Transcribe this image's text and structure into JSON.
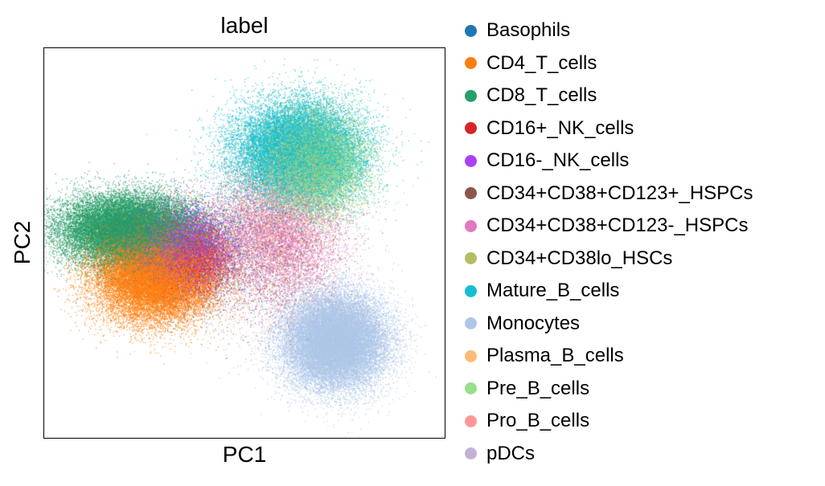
{
  "chart_data": {
    "type": "scatter",
    "title": "label",
    "xlabel": "PC1",
    "ylabel": "PC2",
    "xlim": [
      -1,
      1
    ],
    "ylim": [
      -1,
      1
    ],
    "grid": false,
    "ticks": "hidden",
    "legend_placement": "right outside",
    "series": [
      {
        "name": "Basophils",
        "color": "#1f77b4"
      },
      {
        "name": "CD4_T_cells",
        "color": "#ff7f0e"
      },
      {
        "name": "CD8_T_cells",
        "color": "#279e68"
      },
      {
        "name": "CD16+_NK_cells",
        "color": "#d62728"
      },
      {
        "name": "CD16-_NK_cells",
        "color": "#aa40fc"
      },
      {
        "name": "CD34+CD38+CD123+_HSPCs",
        "color": "#8c564b"
      },
      {
        "name": "CD34+CD38+CD123-_HSPCs",
        "color": "#e377c2"
      },
      {
        "name": "CD34+CD38lo_HSCs",
        "color": "#b5bd61"
      },
      {
        "name": "Mature_B_cells",
        "color": "#17becf"
      },
      {
        "name": "Monocytes",
        "color": "#aec7e8"
      },
      {
        "name": "Plasma_B_cells",
        "color": "#ffbb78"
      },
      {
        "name": "Pre_B_cells",
        "color": "#98df8a"
      },
      {
        "name": "Pro_B_cells",
        "color": "#ff9896"
      },
      {
        "name": "pDCs",
        "color": "#c5b0d5"
      }
    ],
    "clusters": [
      {
        "series": "CD8_T_cells",
        "center": [
          -0.58,
          0.07
        ],
        "spread": [
          0.17,
          0.09
        ],
        "weight": 7
      },
      {
        "series": "CD4_T_cells",
        "center": [
          -0.45,
          -0.16
        ],
        "spread": [
          0.15,
          0.12
        ],
        "weight": 7
      },
      {
        "series": "CD16-_NK_cells",
        "center": [
          -0.32,
          -0.02
        ],
        "spread": [
          0.12,
          0.1
        ],
        "weight": 2
      },
      {
        "series": "CD16+_NK_cells",
        "center": [
          -0.25,
          -0.08
        ],
        "spread": [
          0.1,
          0.1
        ],
        "weight": 1
      },
      {
        "series": "Basophils",
        "center": [
          -0.2,
          -0.05
        ],
        "spread": [
          0.15,
          0.15
        ],
        "weight": 0.4
      },
      {
        "series": "Mature_B_cells",
        "center": [
          0.26,
          0.47
        ],
        "spread": [
          0.16,
          0.13
        ],
        "weight": 6
      },
      {
        "series": "Pre_B_cells",
        "center": [
          0.35,
          0.4
        ],
        "spread": [
          0.13,
          0.13
        ],
        "weight": 3
      },
      {
        "series": "CD34+CD38lo_HSCs",
        "center": [
          0.33,
          0.45
        ],
        "spread": [
          0.11,
          0.11
        ],
        "weight": 1
      },
      {
        "series": "CD34+CD38+CD123-_HSPCs",
        "center": [
          0.18,
          0.05
        ],
        "spread": [
          0.16,
          0.16
        ],
        "weight": 1.4
      },
      {
        "series": "CD34+CD38+CD123+_HSPCs",
        "center": [
          0.12,
          0.02
        ],
        "spread": [
          0.17,
          0.2
        ],
        "weight": 0.6
      },
      {
        "series": "Pro_B_cells",
        "center": [
          0.16,
          0.0
        ],
        "spread": [
          0.15,
          0.18
        ],
        "weight": 0.7
      },
      {
        "series": "Plasma_B_cells",
        "center": [
          0.22,
          0.3
        ],
        "spread": [
          0.15,
          0.15
        ],
        "weight": 0.3
      },
      {
        "series": "Monocytes",
        "center": [
          0.45,
          -0.5
        ],
        "spread": [
          0.13,
          0.12
        ],
        "weight": 8
      },
      {
        "series": "pDCs",
        "center": [
          0.1,
          -0.1
        ],
        "spread": [
          0.2,
          0.2
        ],
        "weight": 0.6
      }
    ]
  }
}
